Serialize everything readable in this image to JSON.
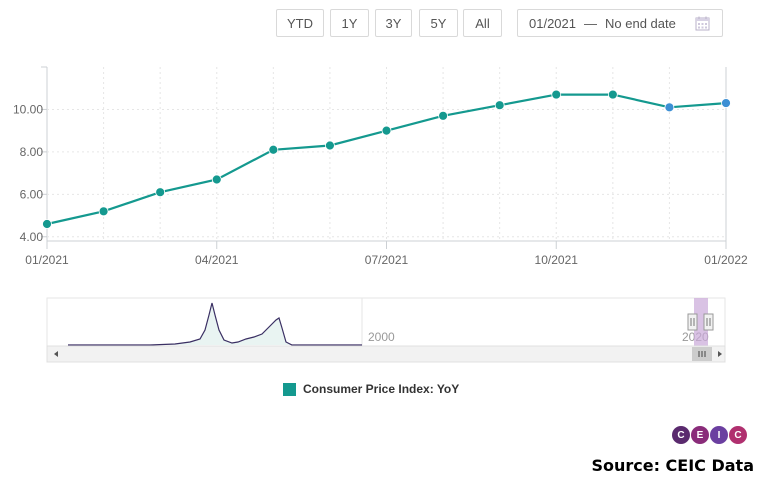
{
  "toolbar": {
    "buttons": [
      "YTD",
      "1Y",
      "3Y",
      "5Y",
      "All"
    ],
    "date_from": "01/2021",
    "date_separator": "—",
    "date_to": "No end date"
  },
  "chart_data": {
    "type": "line",
    "x": [
      "01/2021",
      "02/2021",
      "03/2021",
      "04/2021",
      "05/2021",
      "06/2021",
      "07/2021",
      "08/2021",
      "09/2021",
      "10/2021",
      "11/2021",
      "12/2021",
      "01/2022"
    ],
    "series": [
      {
        "name": "Consumer Price Index: YoY",
        "values": [
          4.6,
          5.2,
          6.1,
          6.7,
          8.1,
          8.3,
          9.0,
          9.7,
          10.2,
          10.7,
          10.7,
          10.1,
          10.3
        ]
      }
    ],
    "x_tick_labels": [
      "01/2021",
      "04/2021",
      "07/2021",
      "10/2021",
      "01/2022"
    ],
    "y_tick_labels": [
      "4.00",
      "6.00",
      "8.00",
      "10.00"
    ],
    "ylim": [
      3.8,
      12.0
    ],
    "grid": true,
    "line_color": "#14998f",
    "highlight_color": "#3c8fd4"
  },
  "navigator": {
    "labels": [
      "2000",
      "2020"
    ]
  },
  "legend": {
    "label": "Consumer Price Index: YoY",
    "color": "#14998f"
  },
  "branding": {
    "logo_letters": [
      "C",
      "E",
      "I",
      "C"
    ],
    "logo_colors": [
      "#5a2a6e",
      "#8a2c7a",
      "#6b3fa0",
      "#b0306f"
    ],
    "source": "Source: CEIC Data"
  }
}
